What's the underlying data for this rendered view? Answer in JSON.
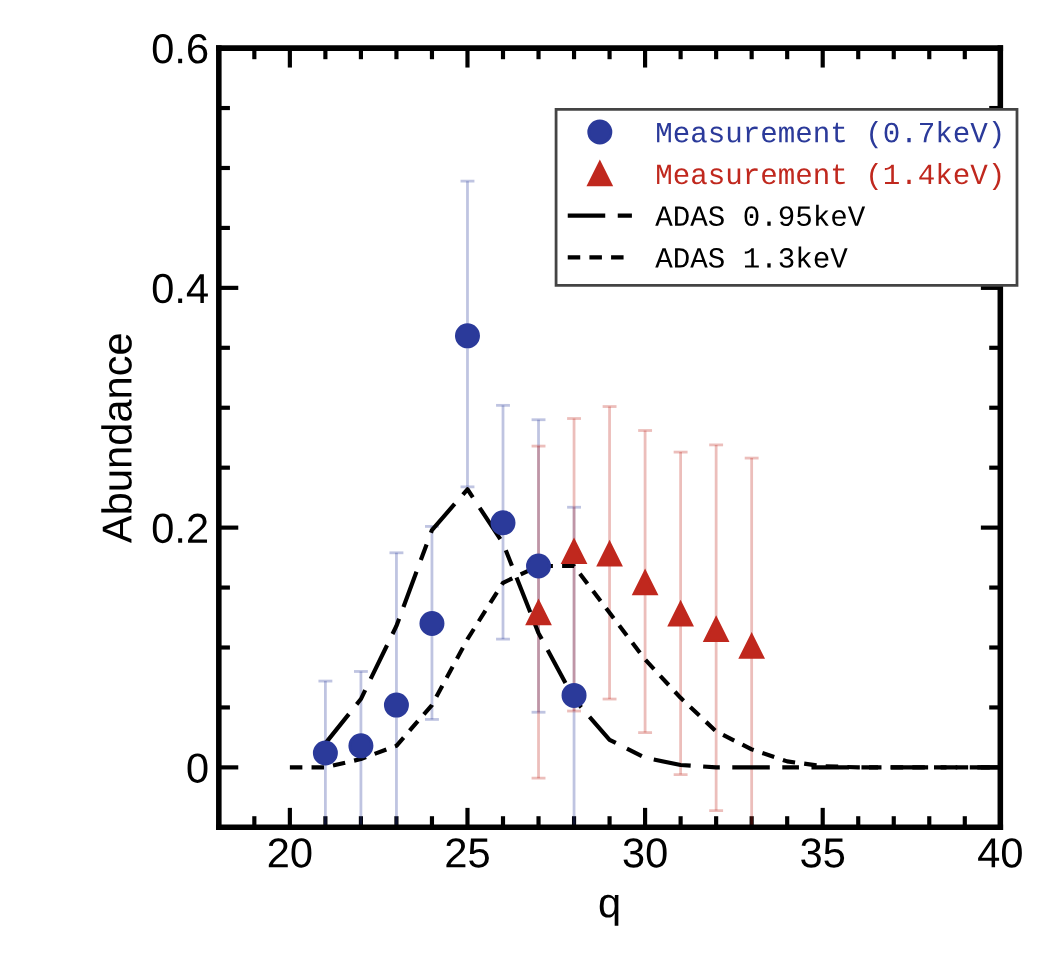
{
  "chart_data": {
    "type": "scatter",
    "xlabel": "q",
    "ylabel": "Abundance",
    "xlim": [
      18,
      40
    ],
    "xticks": [
      20,
      25,
      30,
      35,
      40
    ],
    "ylim": [
      -0.05,
      0.6
    ],
    "yticks": [
      0,
      {
        "value": 0.2,
        "label": "0.2"
      },
      {
        "value": 0.4,
        "label": "0.4"
      },
      {
        "value": 0.6,
        "label": "0.6"
      }
    ],
    "grid": false,
    "legend": "top right",
    "series": [
      {
        "name": "Measurement (0.7keV)",
        "marker": "circle",
        "color": "#2b3a9a",
        "x": [
          21,
          22,
          23,
          24,
          25,
          26,
          27,
          28
        ],
        "values": [
          0.012,
          0.018,
          0.052,
          0.12,
          0.36,
          0.204,
          0.168,
          0.06
        ],
        "errors": [
          [
            -0.05,
            0.072
          ],
          [
            -0.05,
            0.08
          ],
          [
            -0.05,
            0.179
          ],
          [
            0.04,
            0.201
          ],
          [
            0.234,
            0.489
          ],
          [
            0.107,
            0.302
          ],
          [
            0.046,
            0.29
          ],
          [
            -0.05,
            0.217
          ]
        ]
      },
      {
        "name": "Measurement (1.4keV)",
        "marker": "triangle",
        "color": "#c0281e",
        "x": [
          27,
          28,
          29,
          30,
          31,
          32,
          33
        ],
        "values": [
          0.129,
          0.18,
          0.178,
          0.154,
          0.128,
          0.115,
          0.101
        ],
        "errors": [
          [
            -0.009,
            0.268
          ],
          [
            0.047,
            0.291
          ],
          [
            0.057,
            0.301
          ],
          [
            0.029,
            0.281
          ],
          [
            -0.006,
            0.263
          ],
          [
            -0.036,
            0.269
          ],
          [
            -0.05,
            0.258
          ]
        ]
      },
      {
        "name": "ADAS 0.95keV",
        "type": "line",
        "line_style": "dashed",
        "color": "#000000",
        "x": [
          21,
          22,
          23,
          24,
          25,
          26,
          27,
          28,
          29,
          30,
          31,
          32,
          33,
          34,
          35,
          36,
          37,
          38,
          39,
          40
        ],
        "values": [
          0.02,
          0.057,
          0.118,
          0.198,
          0.232,
          0.187,
          0.112,
          0.057,
          0.023,
          0.008,
          0.002,
          0,
          0,
          0,
          0,
          0,
          0,
          0,
          0,
          0
        ]
      },
      {
        "name": "ADAS 1.3keV",
        "type": "line",
        "line_style": "dotted",
        "color": "#000000",
        "x": [
          20,
          21,
          22,
          23,
          24,
          25,
          26,
          27,
          28,
          29,
          30,
          31,
          32,
          33,
          34,
          35,
          36,
          37,
          38,
          39,
          40
        ],
        "values": [
          0,
          0,
          0.007,
          0.018,
          0.052,
          0.107,
          0.154,
          0.168,
          0.168,
          0.129,
          0.09,
          0.058,
          0.03,
          0.015,
          0.005,
          0.001,
          0,
          0,
          0,
          0,
          0
        ]
      }
    ]
  }
}
